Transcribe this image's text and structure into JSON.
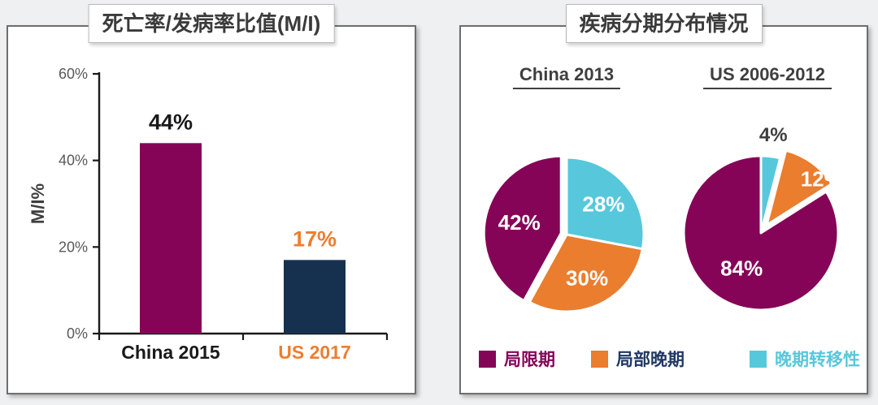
{
  "page": {
    "background": "#eff0f2"
  },
  "chart_data": [
    {
      "type": "bar",
      "title": "死亡率/发病率比值(M/I)",
      "xlabel": "",
      "ylabel": "M/I%",
      "ylim": [
        0,
        60
      ],
      "yticks": [
        60,
        40,
        20,
        0
      ],
      "ytick_labels": [
        "60%",
        "40%",
        "20%",
        "0%"
      ],
      "grid": false,
      "categories": [
        "China 2015",
        "US 2017"
      ],
      "values": [
        44,
        17
      ],
      "value_labels": [
        "44%",
        "17%"
      ],
      "bar_colors": [
        "#850457",
        "#16304f"
      ],
      "category_label_colors": [
        "#1a1a1a",
        "#ed7d31"
      ],
      "value_label_colors": [
        "#1a1a1a",
        "#ed7d31"
      ],
      "axis_color": "#1a1a1a",
      "tick_label_color": "#595959",
      "axis_label_color": "#3f3f3f"
    },
    {
      "type": "pie",
      "title": "疾病分期分布情况",
      "legend_position": "bottom",
      "pies": [
        {
          "subtitle": "China 2013",
          "slices": [
            {
              "label": "晚期转移性",
              "value": 28,
              "pct_label": "28%",
              "color": "#57c8db",
              "explode": 0,
              "label_r": 0.62,
              "label_color": "#ffffff"
            },
            {
              "label": "局部晚期",
              "value": 30,
              "pct_label": "30%",
              "color": "#ea7d2e",
              "explode": 0,
              "label_r": 0.62,
              "label_color": "#ffffff"
            },
            {
              "label": "局限期",
              "value": 42,
              "pct_label": "42%",
              "color": "#850457",
              "explode": 7,
              "label_r": 0.56,
              "label_color": "#ffffff"
            }
          ]
        },
        {
          "subtitle": "US 2006-2012",
          "slices": [
            {
              "label": "晚期转移性",
              "value": 4,
              "pct_label": "4%",
              "color": "#57c8db",
              "explode": 0,
              "label_r": 1.28,
              "label_color": "#3d3d3d",
              "outside": true
            },
            {
              "label": "局部晚期",
              "value": 12,
              "pct_label": "12%",
              "color": "#ea7d2e",
              "explode": 12,
              "label_r": 0.93,
              "label_angle": 50,
              "label_color": "#ffffff"
            },
            {
              "label": "局限期",
              "value": 84,
              "pct_label": "84%",
              "color": "#850457",
              "explode": 0,
              "label_r": 0.52,
              "label_color": "#ffffff"
            }
          ]
        }
      ],
      "legend": [
        {
          "label": "局限期",
          "swatch": "#850457",
          "text_color": "#850457"
        },
        {
          "label": "局部晚期",
          "swatch": "#ea7d2e",
          "text_color": "#203864"
        },
        {
          "label": "晚期转移性",
          "swatch": "#57c8db",
          "text_color": "#57c8db"
        }
      ]
    }
  ]
}
